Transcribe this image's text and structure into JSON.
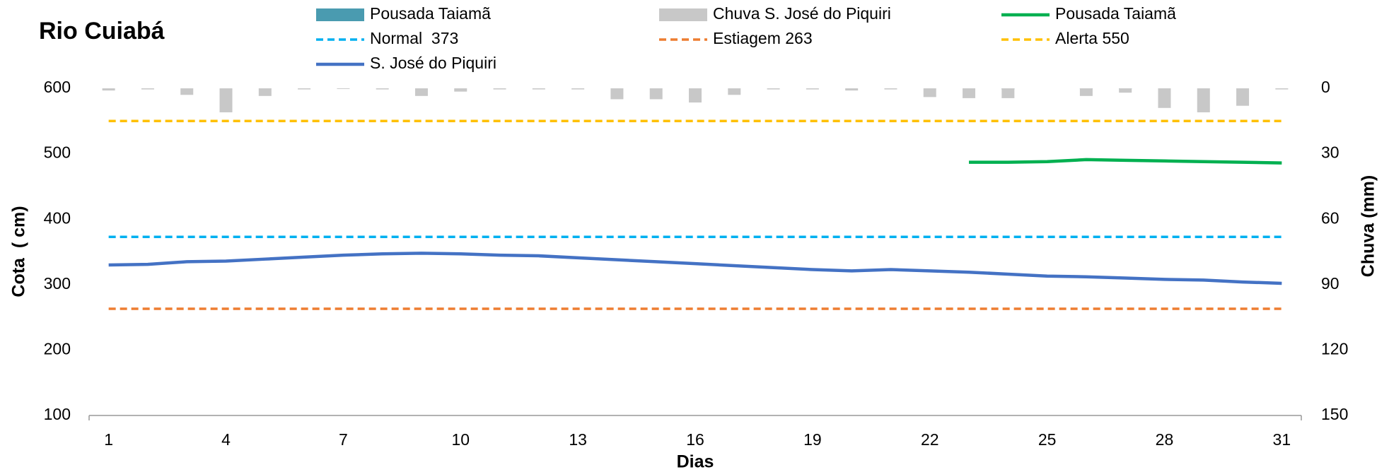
{
  "chart_data": {
    "type": "combo",
    "title": "Rio Cuiabá",
    "x_label": "Dias",
    "y_label": "Cota  ( cm)",
    "y2_label": "Chuva (mm)",
    "x": [
      1,
      2,
      3,
      4,
      5,
      6,
      7,
      8,
      9,
      10,
      11,
      12,
      13,
      14,
      15,
      16,
      17,
      18,
      19,
      20,
      21,
      22,
      23,
      24,
      25,
      26,
      27,
      28,
      29,
      30,
      31
    ],
    "xlim": [
      0.5,
      31.5
    ],
    "xticks": [
      1,
      4,
      7,
      10,
      13,
      16,
      19,
      22,
      25,
      28,
      31
    ],
    "ylim": [
      100,
      600
    ],
    "yticks": [
      100,
      200,
      300,
      400,
      500,
      600
    ],
    "y2lim": [
      0,
      150
    ],
    "y2ticks": [
      0,
      30,
      60,
      90,
      120,
      150
    ],
    "y2_inverted": true,
    "series": [
      {
        "name": "Pousada Taiamã",
        "type": "bar",
        "axis": "y2",
        "color": "#4a9bb0",
        "values": [
          0,
          0,
          0,
          0,
          0,
          0,
          0,
          0,
          0,
          0,
          0,
          0,
          0,
          0,
          0,
          0,
          0,
          0,
          0,
          0,
          0,
          0,
          0,
          0.5,
          0,
          0.3,
          0.3,
          0,
          0,
          0,
          0
        ]
      },
      {
        "name": "Chuva S. José do Piquiri",
        "type": "bar",
        "axis": "y2",
        "color": "#c8c8c8",
        "values": [
          1,
          0.5,
          3,
          11,
          3.5,
          0.5,
          0.3,
          0.5,
          3.5,
          1.5,
          0.5,
          0.5,
          0.5,
          5,
          5,
          6.5,
          3,
          0.5,
          0.5,
          1,
          0.5,
          4,
          4.5,
          4.5,
          0,
          3.5,
          2,
          9,
          11,
          8,
          0.5
        ]
      },
      {
        "name": "Pousada Taiamã",
        "type": "line",
        "color": "#00b050",
        "values": [
          null,
          null,
          null,
          null,
          null,
          null,
          null,
          null,
          null,
          null,
          null,
          null,
          null,
          null,
          null,
          null,
          null,
          null,
          null,
          null,
          null,
          null,
          487,
          487,
          488,
          491,
          490,
          489,
          488,
          487,
          486
        ]
      },
      {
        "name": "Normal  373",
        "type": "dashed",
        "color": "#00b0f0",
        "values": [
          373,
          373,
          373,
          373,
          373,
          373,
          373,
          373,
          373,
          373,
          373,
          373,
          373,
          373,
          373,
          373,
          373,
          373,
          373,
          373,
          373,
          373,
          373,
          373,
          373,
          373,
          373,
          373,
          373,
          373,
          373
        ]
      },
      {
        "name": "Estiagem 263",
        "type": "dashed",
        "color": "#ed7d31",
        "values": [
          263,
          263,
          263,
          263,
          263,
          263,
          263,
          263,
          263,
          263,
          263,
          263,
          263,
          263,
          263,
          263,
          263,
          263,
          263,
          263,
          263,
          263,
          263,
          263,
          263,
          263,
          263,
          263,
          263,
          263,
          263
        ]
      },
      {
        "name": "Alerta 550",
        "type": "dashed",
        "color": "#ffc000",
        "values": [
          550,
          550,
          550,
          550,
          550,
          550,
          550,
          550,
          550,
          550,
          550,
          550,
          550,
          550,
          550,
          550,
          550,
          550,
          550,
          550,
          550,
          550,
          550,
          550,
          550,
          550,
          550,
          550,
          550,
          550,
          550
        ]
      },
      {
        "name": "S. José do Piquiri",
        "type": "line",
        "color": "#4472c4",
        "values": [
          330,
          331,
          335,
          336,
          339,
          342,
          345,
          347,
          348,
          347,
          345,
          344,
          341,
          338,
          335,
          332,
          329,
          326,
          323,
          321,
          323,
          321,
          319,
          316,
          313,
          312,
          310,
          308,
          307,
          304,
          302
        ]
      }
    ]
  }
}
